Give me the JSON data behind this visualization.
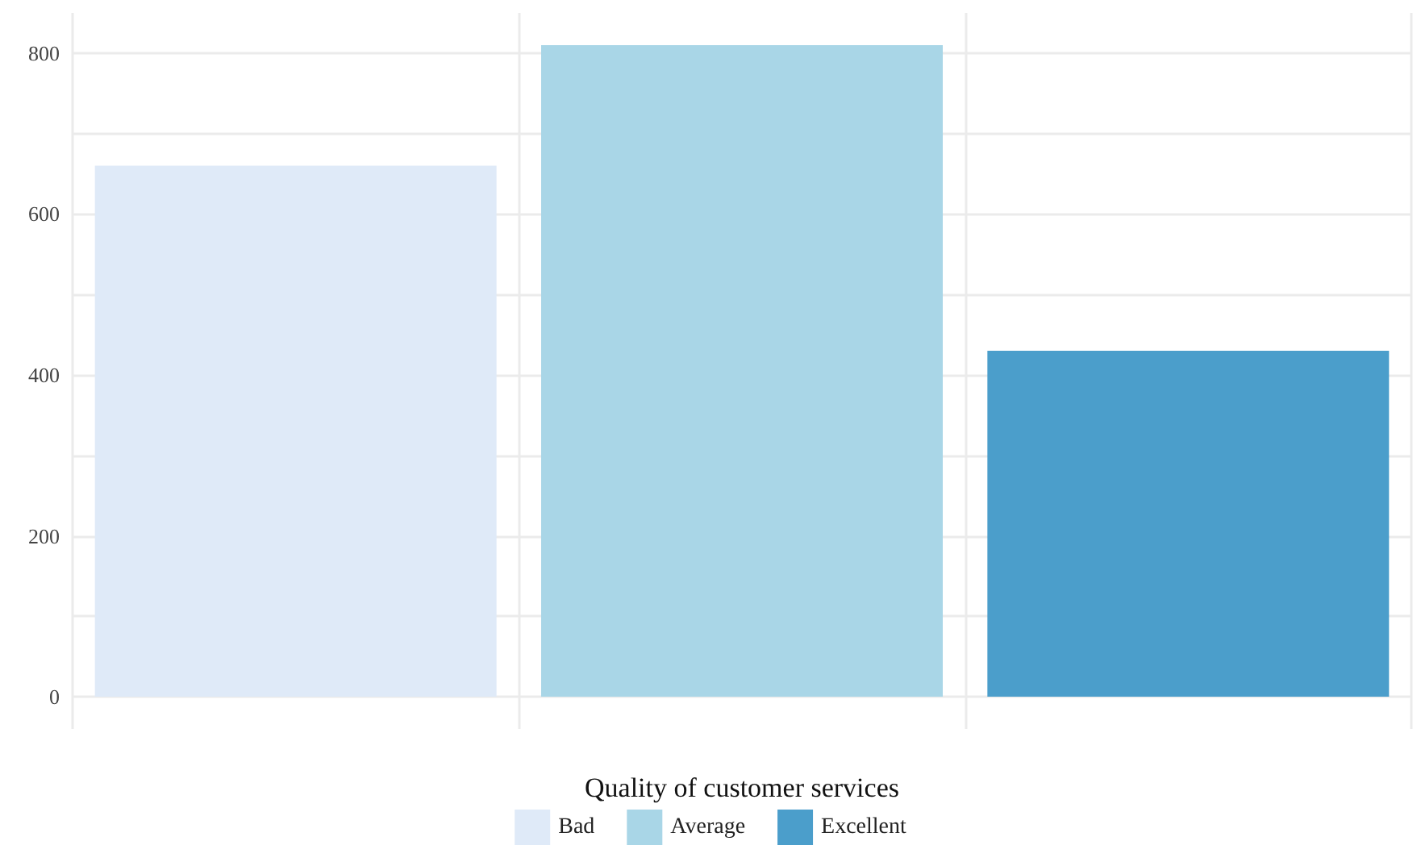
{
  "chart_data": {
    "type": "bar",
    "xlabel": "Quality of customer services",
    "categories": [
      null,
      null,
      null
    ],
    "series": [
      {
        "name": "Bad",
        "color": "#dfeaf8",
        "values": [
          660,
          null,
          null
        ]
      },
      {
        "name": "Average",
        "color": "#a9d6e7",
        "values": [
          null,
          810,
          null
        ]
      },
      {
        "name": "Excellent",
        "color": "#4b9ecb",
        "values": [
          null,
          null,
          430
        ]
      }
    ],
    "stacked": true,
    "ylim": [
      -40,
      850
    ],
    "yticks": [
      0,
      {
        "value": 100,
        "label": null
      },
      200,
      {
        "value": 300,
        "label": null
      },
      400,
      {
        "value": 500,
        "label": null
      },
      600,
      {
        "value": 700,
        "label": null
      },
      800
    ],
    "grid": true,
    "legend": "bottom",
    "tick_labels": "y"
  }
}
